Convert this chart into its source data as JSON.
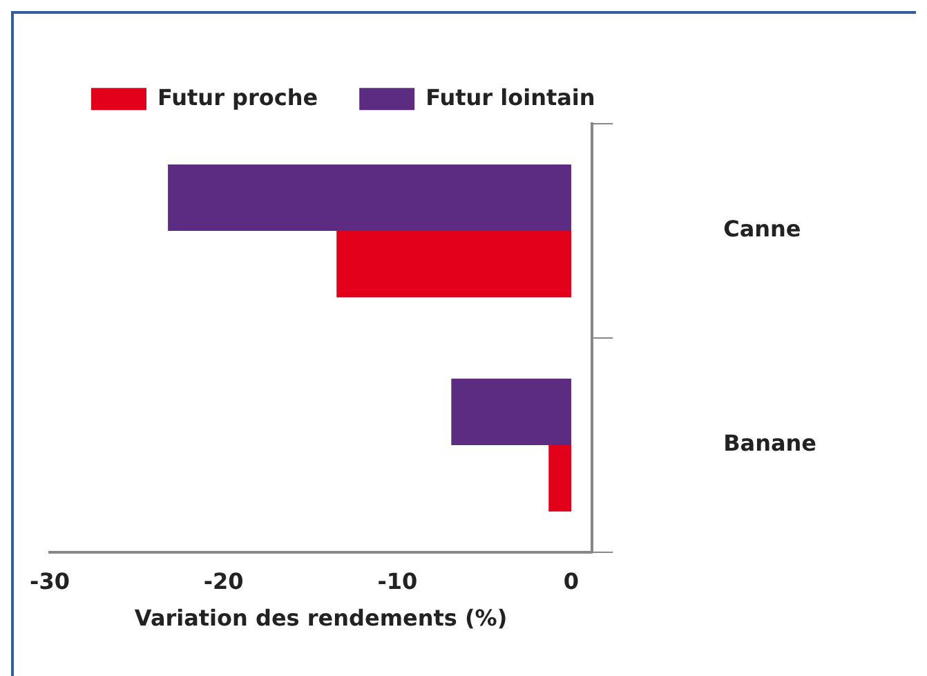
{
  "chart_data": {
    "type": "bar",
    "orientation": "horizontal",
    "xlabel": "Variation des rendements (%)",
    "categories": [
      "Canne",
      "Banane"
    ],
    "series": [
      {
        "name": "Futur proche",
        "color": "#e2001a",
        "values": [
          -13.5,
          -1.3
        ]
      },
      {
        "name": "Futur lointain",
        "color": "#5b2c82",
        "values": [
          -23.2,
          -6.9
        ]
      }
    ],
    "xlim": [
      -30,
      1.2
    ],
    "xticks": [
      -30,
      -20,
      -10,
      0
    ],
    "grid": false,
    "legend": "top left"
  }
}
